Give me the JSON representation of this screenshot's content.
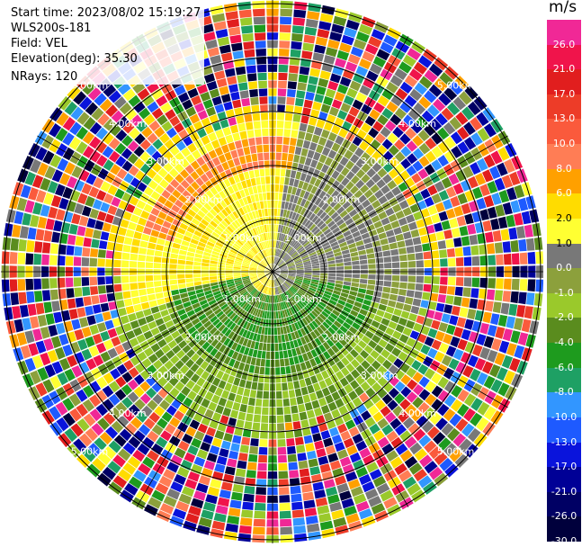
{
  "header": {
    "start_time": "Start time: 2023/08/02 15:19:27",
    "instrument": "WLS200s-181",
    "field": "Field: VEL",
    "elevation": "Elevation(deg): 35.30",
    "nrays": "NRays: 120"
  },
  "colorbar": {
    "unit": "m/s",
    "ticks": [
      "26.0",
      "21.0",
      "17.0",
      "13.0",
      "10.0",
      "8.0",
      "6.0",
      "2.0",
      "1.0",
      "0.0",
      "-1.0",
      "-2.0",
      "-4.0",
      "-6.0",
      "-8.0",
      "-10.0",
      "-13.0",
      "-17.0",
      "-21.0",
      "-26.0",
      "-30.0"
    ],
    "colors": [
      "#f02896",
      "#f0144b",
      "#e11e1e",
      "#ed3c28",
      "#fa5a3c",
      "#ff7d55",
      "#ffa000",
      "#ffdc00",
      "#ffff32",
      "#787878",
      "#8ca03c",
      "#9ac92b",
      "#5a8c1e",
      "#1e9b1e",
      "#1ea064",
      "#3296ff",
      "#1e5aff",
      "#0a14dc",
      "#000096",
      "#000064",
      "#00003c"
    ]
  },
  "range_labels": [
    "1.00km",
    "2.00km",
    "3.00km",
    "4.00km",
    "5.00km"
  ]
}
